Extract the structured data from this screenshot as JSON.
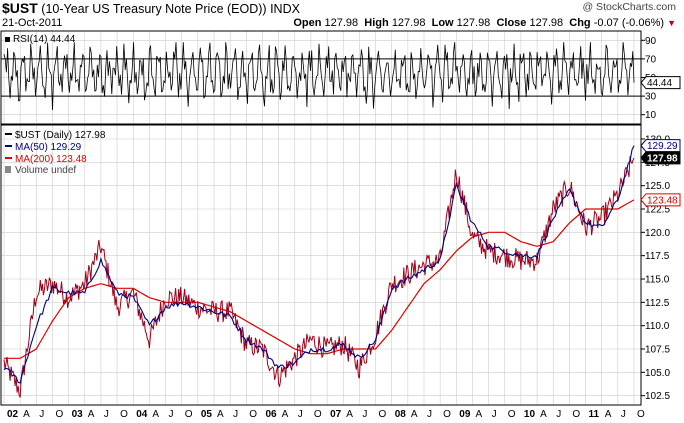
{
  "header": {
    "ticker": "$UST",
    "title_rest": "(10-Year US Treasury Note Price (EOD))",
    "exchange": "INDX",
    "date": "21-Oct-2011",
    "copyright": "@ StockCharts.com",
    "open_label": "Open",
    "open": "127.98",
    "high_label": "High",
    "high": "127.98",
    "low_label": "Low",
    "low": "127.98",
    "close_label": "Close",
    "close": "127.98",
    "chg_label": "Chg",
    "chg": "-0.07 (-0.06%)",
    "chg_arrow": "▼"
  },
  "rsi_panel": {
    "legend": "RSI(14) 44.44",
    "current_value": 44.44,
    "current_label": "44.44",
    "ticks": [
      10,
      30,
      50,
      70,
      90
    ],
    "tick_labels": [
      "10",
      "30",
      "50",
      "70",
      "90"
    ],
    "overbought": 70,
    "oversold": 30,
    "ylim": [
      0,
      100
    ]
  },
  "price_panel": {
    "legend": {
      "price": "$UST (Daily) 127.98",
      "ma50": "MA(50) 129.29",
      "ma200": "MA(200) 123.48",
      "volume": "Volume undef"
    },
    "ylim": [
      101.5,
      131.5
    ],
    "y_ticks": [
      102.5,
      105.0,
      107.5,
      110.0,
      112.5,
      115.0,
      117.5,
      120.0,
      122.5,
      125.0,
      127.5,
      130.0
    ],
    "y_tick_labels": [
      "102.5",
      "105.0",
      "107.5",
      "110.0",
      "112.5",
      "115.0",
      "117.5",
      "120.0",
      "122.5",
      "125.0",
      "127.5",
      "130.0"
    ],
    "last_labels": {
      "ma50": "129.29",
      "price": "127.98",
      "ma200": "123.48"
    },
    "colors": {
      "price": "#a00018",
      "price_bars": "#000000",
      "ma50": "#000080",
      "ma200": "#e00000",
      "grid": "#cccccc"
    }
  },
  "x_axis": {
    "labels": [
      "02",
      "A",
      "J",
      "O",
      "03",
      "A",
      "J",
      "O",
      "04",
      "A",
      "J",
      "O",
      "05",
      "A",
      "J",
      "O",
      "06",
      "A",
      "J",
      "O",
      "07",
      "A",
      "J",
      "O",
      "08",
      "A",
      "J",
      "O",
      "09",
      "A",
      "J",
      "O",
      "10",
      "A",
      "J",
      "O",
      "11",
      "A",
      "J",
      "O"
    ],
    "bold": [
      "02",
      "03",
      "04",
      "05",
      "06",
      "07",
      "08",
      "09",
      "10",
      "11"
    ]
  },
  "chart_data": {
    "type": "line",
    "x_start": "2002-01",
    "x_end": "2011-10",
    "x": [
      "2002-01",
      "2002-04",
      "2002-07",
      "2002-10",
      "2003-01",
      "2003-04",
      "2003-07",
      "2003-10",
      "2004-01",
      "2004-04",
      "2004-07",
      "2004-10",
      "2005-01",
      "2005-04",
      "2005-07",
      "2005-10",
      "2006-01",
      "2006-04",
      "2006-07",
      "2006-10",
      "2007-01",
      "2007-04",
      "2007-07",
      "2007-10",
      "2008-01",
      "2008-04",
      "2008-07",
      "2008-10",
      "2009-01",
      "2009-04",
      "2009-07",
      "2009-10",
      "2010-01",
      "2010-04",
      "2010-07",
      "2010-10",
      "2011-01",
      "2011-04",
      "2011-07",
      "2011-10"
    ],
    "series": [
      {
        "name": "$UST (Daily)",
        "values": [
          106.0,
          103.0,
          113.5,
          114.5,
          113.0,
          114.5,
          118.5,
          112.0,
          113.5,
          108.5,
          113.0,
          113.0,
          112.0,
          111.5,
          111.5,
          108.0,
          107.5,
          104.5,
          106.5,
          108.5,
          107.5,
          108.0,
          105.5,
          109.0,
          114.5,
          115.5,
          116.5,
          117.0,
          126.5,
          119.5,
          118.0,
          117.5,
          117.0,
          117.0,
          122.5,
          125.0,
          120.5,
          121.5,
          124.0,
          127.98
        ]
      },
      {
        "name": "MA(50)",
        "values": [
          105.5,
          104.0,
          110.0,
          114.0,
          113.5,
          113.5,
          117.0,
          113.5,
          113.0,
          110.0,
          112.0,
          112.5,
          112.0,
          111.5,
          111.0,
          108.5,
          107.5,
          105.5,
          106.0,
          107.5,
          107.5,
          108.0,
          106.5,
          108.5,
          114.0,
          115.0,
          116.0,
          117.0,
          125.0,
          121.0,
          118.5,
          118.0,
          117.5,
          117.5,
          121.5,
          124.5,
          121.0,
          120.5,
          123.5,
          129.29
        ]
      },
      {
        "name": "MA(200)",
        "values": [
          106.5,
          106.5,
          107.5,
          110.5,
          113.0,
          114.0,
          114.5,
          114.0,
          114.0,
          113.0,
          112.5,
          112.5,
          112.5,
          112.0,
          111.5,
          110.5,
          109.5,
          108.5,
          107.5,
          107.0,
          107.0,
          107.5,
          107.5,
          107.5,
          109.5,
          112.0,
          114.5,
          116.0,
          118.0,
          119.5,
          120.0,
          120.0,
          119.0,
          118.5,
          119.0,
          121.0,
          122.5,
          122.5,
          122.5,
          123.48
        ]
      }
    ],
    "ylim": [
      101.5,
      131.5
    ]
  }
}
